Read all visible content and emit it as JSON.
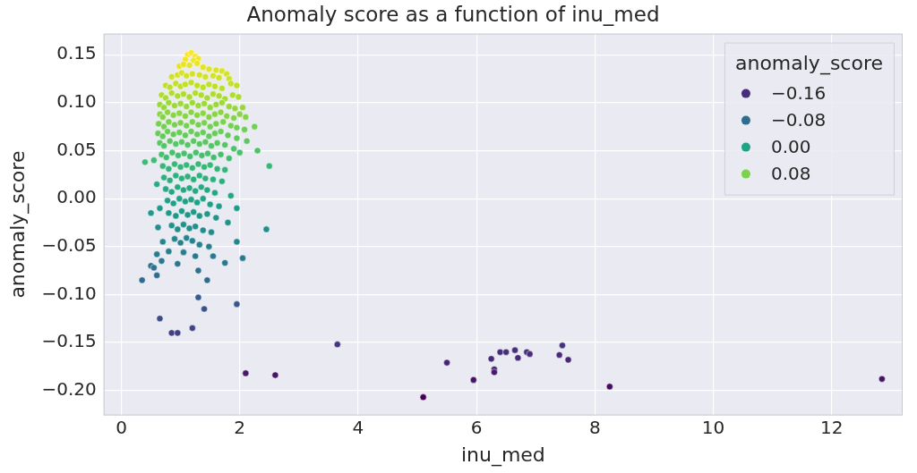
{
  "chart_data": {
    "type": "scatter",
    "title": "Anomaly score as a function of inu_med",
    "x_label": "inu_med",
    "y_label": "anomaly_score",
    "x": [
      1.12,
      1.18,
      1.25,
      1.3,
      1.08,
      1.22,
      0.98,
      1.05,
      1.15,
      1.28,
      1.38,
      1.48,
      1.6,
      1.7,
      0.85,
      0.95,
      1.02,
      1.1,
      1.2,
      1.32,
      1.42,
      1.55,
      1.65,
      1.78,
      1.82,
      0.75,
      0.82,
      0.92,
      1.0,
      1.08,
      1.18,
      1.28,
      1.38,
      1.48,
      1.58,
      1.7,
      1.85,
      1.95,
      0.68,
      0.75,
      0.85,
      0.95,
      1.05,
      1.15,
      1.25,
      1.35,
      1.45,
      1.55,
      1.65,
      1.75,
      1.88,
      1.98,
      2.05,
      0.65,
      0.72,
      0.8,
      0.9,
      1.0,
      1.1,
      1.2,
      1.3,
      1.4,
      1.5,
      1.6,
      1.7,
      1.82,
      1.92,
      2.1,
      0.65,
      0.7,
      0.78,
      0.88,
      0.98,
      1.08,
      1.18,
      1.28,
      1.38,
      1.48,
      1.58,
      1.68,
      1.78,
      1.9,
      2.0,
      2.25,
      0.63,
      0.72,
      0.8,
      0.9,
      1.0,
      1.1,
      1.2,
      1.3,
      1.4,
      1.5,
      1.6,
      1.72,
      1.85,
      1.95,
      2.08,
      0.62,
      0.7,
      0.78,
      0.88,
      0.98,
      1.08,
      1.18,
      1.28,
      1.38,
      1.48,
      1.58,
      1.68,
      1.8,
      1.95,
      2.12,
      0.65,
      0.72,
      0.82,
      0.92,
      1.02,
      1.12,
      1.22,
      1.32,
      1.42,
      1.52,
      1.62,
      1.75,
      1.9,
      2.3,
      2.0,
      0.68,
      0.76,
      0.86,
      0.96,
      1.06,
      1.16,
      1.26,
      1.36,
      1.46,
      1.56,
      1.68,
      1.82,
      0.4,
      0.55,
      2.5,
      0.7,
      0.8,
      0.9,
      1.0,
      1.1,
      1.2,
      1.3,
      1.4,
      1.5,
      1.62,
      1.75,
      0.72,
      0.82,
      0.92,
      1.02,
      1.12,
      1.22,
      1.32,
      1.42,
      1.55,
      1.7,
      0.6,
      0.75,
      0.85,
      0.95,
      1.05,
      1.15,
      1.25,
      1.35,
      1.45,
      1.58,
      1.85,
      0.5,
      0.78,
      0.88,
      0.98,
      1.08,
      1.18,
      1.28,
      1.38,
      1.5,
      1.65,
      0.65,
      1.95,
      0.8,
      0.92,
      1.02,
      1.12,
      1.22,
      1.32,
      1.45,
      1.6,
      0.62,
      1.8,
      0.85,
      0.95,
      1.05,
      1.15,
      1.25,
      1.38,
      1.52,
      2.45,
      1.95,
      0.7,
      0.9,
      1.0,
      1.1,
      1.2,
      1.32,
      1.48,
      0.6,
      2.05,
      0.8,
      1.05,
      1.25,
      1.55,
      1.75,
      0.68,
      0.95,
      1.3,
      0.35,
      0.5,
      0.55,
      0.6,
      0.65,
      0.85,
      0.95,
      1.2,
      1.3,
      1.4,
      1.45,
      1.95,
      2.1,
      2.6,
      3.65,
      5.1,
      5.5,
      5.95,
      6.25,
      6.3,
      6.3,
      6.4,
      6.5,
      6.65,
      6.7,
      6.85,
      6.9,
      7.4,
      7.45,
      7.55,
      8.25,
      12.85
    ],
    "values": [
      0.15,
      0.152,
      0.148,
      0.146,
      0.145,
      0.144,
      0.138,
      0.14,
      0.139,
      0.141,
      0.137,
      0.135,
      0.134,
      0.133,
      0.127,
      0.129,
      0.131,
      0.128,
      0.13,
      0.129,
      0.127,
      0.128,
      0.126,
      0.13,
      0.125,
      0.118,
      0.116,
      0.12,
      0.117,
      0.119,
      0.121,
      0.118,
      0.116,
      0.119,
      0.117,
      0.115,
      0.12,
      0.118,
      0.108,
      0.105,
      0.11,
      0.107,
      0.109,
      0.106,
      0.11,
      0.108,
      0.105,
      0.109,
      0.107,
      0.104,
      0.108,
      0.106,
      0.095,
      0.098,
      0.095,
      0.1,
      0.097,
      0.099,
      0.096,
      0.1,
      0.097,
      0.099,
      0.095,
      0.098,
      0.1,
      0.096,
      0.094,
      0.085,
      0.088,
      0.085,
      0.09,
      0.087,
      0.089,
      0.086,
      0.09,
      0.087,
      0.089,
      0.085,
      0.088,
      0.09,
      0.086,
      0.084,
      0.088,
      0.075,
      0.078,
      0.075,
      0.08,
      0.077,
      0.079,
      0.076,
      0.08,
      0.077,
      0.079,
      0.075,
      0.078,
      0.08,
      0.076,
      0.074,
      0.072,
      0.068,
      0.065,
      0.07,
      0.067,
      0.069,
      0.066,
      0.07,
      0.067,
      0.069,
      0.065,
      0.068,
      0.07,
      0.066,
      0.063,
      0.06,
      0.058,
      0.055,
      0.06,
      0.057,
      0.059,
      0.056,
      0.06,
      0.057,
      0.059,
      0.055,
      0.058,
      0.056,
      0.052,
      0.05,
      0.048,
      0.046,
      0.043,
      0.048,
      0.045,
      0.047,
      0.044,
      0.048,
      0.045,
      0.047,
      0.043,
      0.046,
      0.042,
      0.038,
      0.04,
      0.034,
      0.034,
      0.031,
      0.036,
      0.033,
      0.035,
      0.032,
      0.036,
      0.033,
      0.035,
      0.031,
      0.03,
      0.022,
      0.019,
      0.024,
      0.021,
      0.023,
      0.02,
      0.024,
      0.021,
      0.02,
      0.018,
      0.015,
      0.01,
      0.007,
      0.012,
      0.009,
      0.011,
      0.008,
      0.012,
      0.009,
      0.006,
      0.003,
      -0.015,
      -0.002,
      -0.005,
      0.0,
      -0.003,
      -0.001,
      -0.004,
      0.0,
      -0.006,
      -0.008,
      -0.01,
      -0.01,
      -0.015,
      -0.018,
      -0.013,
      -0.017,
      -0.014,
      -0.018,
      -0.016,
      -0.02,
      -0.03,
      -0.025,
      -0.028,
      -0.032,
      -0.027,
      -0.031,
      -0.029,
      -0.033,
      -0.035,
      -0.032,
      -0.045,
      -0.045,
      -0.042,
      -0.046,
      -0.041,
      -0.044,
      -0.048,
      -0.05,
      -0.058,
      -0.062,
      -0.055,
      -0.056,
      -0.06,
      -0.06,
      -0.067,
      -0.065,
      -0.068,
      -0.075,
      -0.085,
      -0.07,
      -0.072,
      -0.08,
      -0.125,
      -0.14,
      -0.14,
      -0.135,
      -0.103,
      -0.115,
      -0.085,
      -0.11,
      -0.182,
      -0.184,
      -0.152,
      -0.207,
      -0.171,
      -0.189,
      -0.167,
      -0.178,
      -0.181,
      -0.16,
      -0.16,
      -0.158,
      -0.166,
      -0.16,
      -0.162,
      -0.163,
      -0.153,
      -0.168,
      -0.196,
      -0.188
    ],
    "xlim": [
      -0.3,
      13.2
    ],
    "xticks": [
      0,
      2,
      4,
      6,
      8,
      10,
      12
    ],
    "ylim": [
      -0.226,
      0.172
    ],
    "yticks": [
      {
        "value": -0.2,
        "label": "−0.20"
      },
      {
        "value": -0.15,
        "label": "−0.15"
      },
      {
        "value": -0.1,
        "label": "−0.10"
      },
      {
        "value": -0.05,
        "label": "−0.05"
      },
      {
        "value": 0,
        "label": "0.00"
      },
      {
        "value": 0.05,
        "label": "0.05"
      },
      {
        "value": 0.1,
        "label": "0.10"
      },
      {
        "value": 0.15,
        "label": "0.15"
      }
    ],
    "hue": {
      "title": "anomaly_score",
      "range": [
        -0.207,
        0.152
      ],
      "colors": [
        "#440154",
        "#482878",
        "#3e4989",
        "#31688e",
        "#26828e",
        "#1f9e89",
        "#35b779",
        "#6ece58",
        "#b5de2b",
        "#fde725"
      ],
      "ticks": [
        {
          "value": -0.16,
          "label": "−0.16"
        },
        {
          "value": -0.08,
          "label": "−0.08"
        },
        {
          "value": 0,
          "label": "0.00"
        },
        {
          "value": 0.08,
          "label": "0.08"
        }
      ]
    },
    "marker": "circle",
    "grid": true,
    "legend": "upper right"
  }
}
